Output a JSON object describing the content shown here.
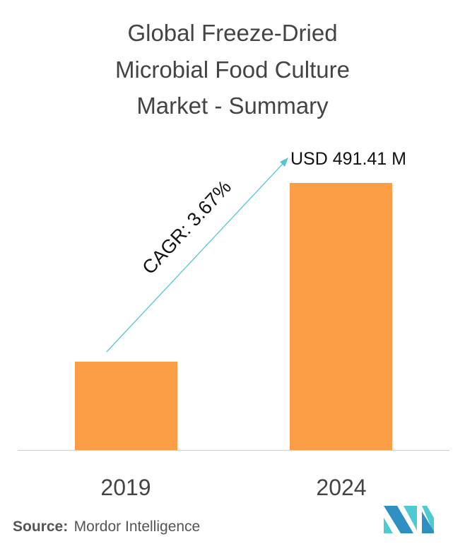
{
  "chart_data": {
    "type": "bar",
    "title_lines": [
      "Global Freeze-Dried",
      "Microbial Food Culture",
      "Market - Summary"
    ],
    "categories": [
      "2019",
      "2024"
    ],
    "values": [
      162.5,
      491.41
    ],
    "value_labels": [
      "",
      "USD 491.41 M"
    ],
    "annotation": "CAGR: 3.67%",
    "xlabel": "",
    "ylabel": "",
    "ylim": [
      0,
      560
    ],
    "grid": false,
    "legend": "none"
  },
  "source": {
    "label": "Source:",
    "text": "Mordor Intelligence"
  },
  "colors": {
    "bar": "#FB9D45",
    "arrow": "#56C6CE",
    "logo_dark": "#2E8FC0",
    "logo_light": "#4DCBD0"
  }
}
